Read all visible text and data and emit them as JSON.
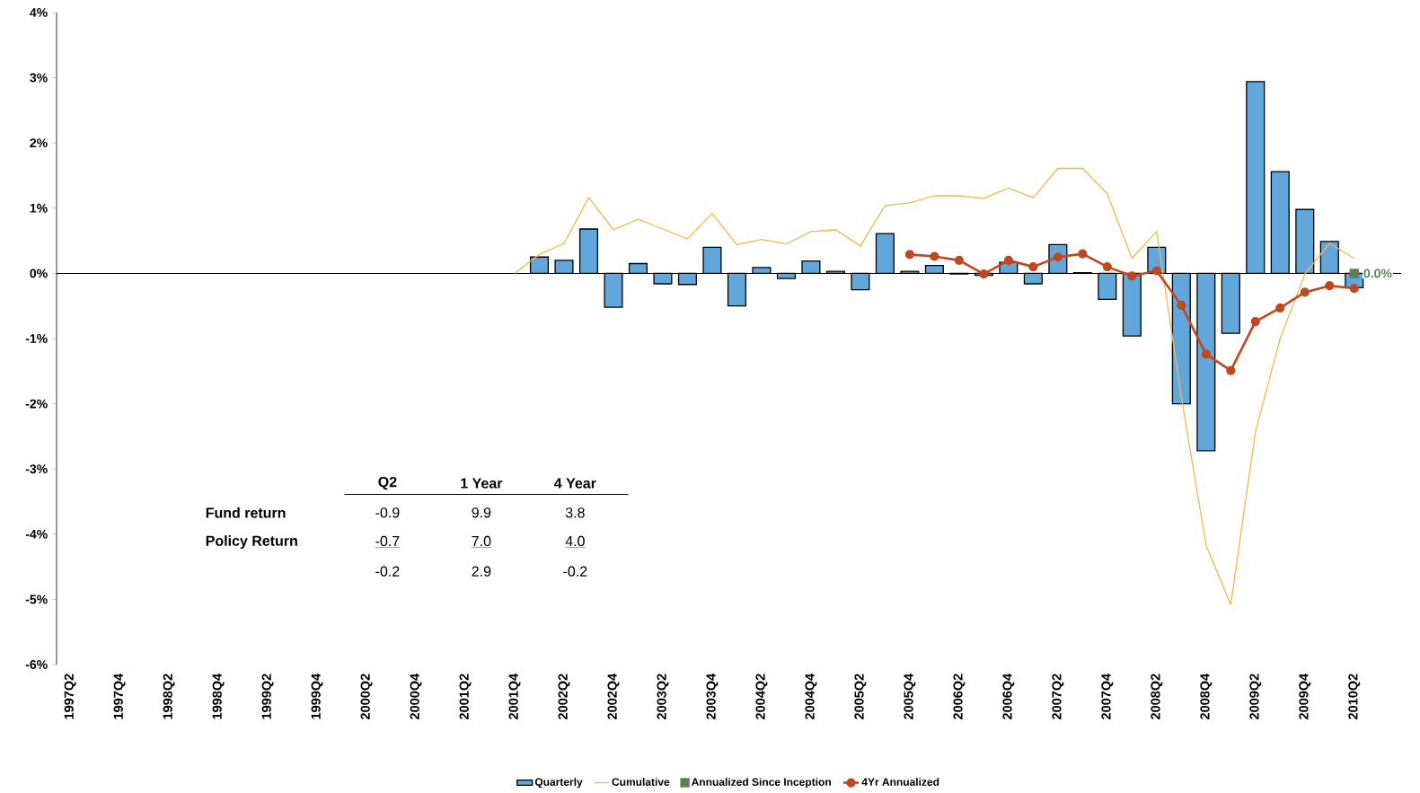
{
  "chart_data": {
    "type": "bar",
    "categories": [
      "1997Q2",
      null,
      "1997Q4",
      null,
      "1998Q2",
      null,
      "1998Q4",
      null,
      "1999Q2",
      null,
      "1999Q4",
      null,
      "2000Q2",
      null,
      "2000Q4",
      null,
      "2001Q2",
      null,
      "2001Q4",
      null,
      "2002Q2",
      null,
      "2002Q4",
      null,
      "2003Q2",
      null,
      "2003Q4",
      null,
      "2004Q2",
      null,
      "2004Q4",
      null,
      "2005Q2",
      null,
      "2005Q4",
      null,
      "2006Q2",
      null,
      "2006Q4",
      null,
      "2007Q2",
      null,
      "2007Q4",
      null,
      "2008Q2",
      null,
      "2008Q4",
      null,
      "2009Q2",
      null,
      "2009Q4",
      null,
      "2010Q2"
    ],
    "series": [
      {
        "name": "Quarterly",
        "color": "#62a7dc",
        "values": [
          null,
          null,
          null,
          null,
          null,
          null,
          null,
          null,
          null,
          null,
          null,
          null,
          null,
          null,
          null,
          null,
          null,
          null,
          null,
          0.25,
          0.2,
          0.68,
          -0.52,
          0.15,
          -0.16,
          -0.17,
          0.4,
          -0.5,
          0.09,
          -0.08,
          0.19,
          0.03,
          -0.25,
          0.61,
          0.03,
          0.12,
          -0.01,
          -0.03,
          0.17,
          -0.16,
          0.44,
          0.01,
          -0.4,
          -0.96,
          0.4,
          -2.0,
          -2.72,
          -0.92,
          2.94,
          1.56,
          0.98,
          0.49,
          -0.22
        ]
      },
      {
        "name": "Cumulative",
        "type": "line",
        "color": "#f2b84b",
        "marker": "none",
        "values": [
          null,
          null,
          null,
          null,
          null,
          null,
          null,
          null,
          null,
          null,
          null,
          null,
          null,
          null,
          null,
          null,
          null,
          null,
          0,
          0.29,
          0.46,
          1.16,
          0.67,
          0.83,
          0.68,
          0.53,
          0.92,
          0.44,
          0.52,
          0.45,
          0.64,
          0.67,
          0.42,
          1.04,
          1.08,
          1.19,
          1.19,
          1.15,
          1.31,
          1.16,
          1.61,
          1.61,
          1.22,
          0.23,
          0.64,
          -1.9,
          -4.17,
          -5.08,
          -2.43,
          -1.0,
          -0.01,
          0.46,
          0.23
        ]
      },
      {
        "name": "Annualized Since Inception",
        "type": "scatter",
        "color": "#5f7f56",
        "marker": "square",
        "values": [
          null,
          null,
          null,
          null,
          null,
          null,
          null,
          null,
          null,
          null,
          null,
          null,
          null,
          null,
          null,
          null,
          null,
          null,
          null,
          null,
          null,
          null,
          null,
          null,
          null,
          null,
          null,
          null,
          null,
          null,
          null,
          null,
          null,
          null,
          null,
          null,
          null,
          null,
          null,
          null,
          null,
          null,
          null,
          null,
          null,
          null,
          null,
          null,
          null,
          null,
          null,
          null,
          0.0
        ],
        "value_labels": [
          null,
          null,
          null,
          null,
          null,
          null,
          null,
          null,
          null,
          null,
          null,
          null,
          null,
          null,
          null,
          null,
          null,
          null,
          null,
          null,
          null,
          null,
          null,
          null,
          null,
          null,
          null,
          null,
          null,
          null,
          null,
          null,
          null,
          null,
          null,
          null,
          null,
          null,
          null,
          null,
          null,
          null,
          null,
          null,
          null,
          null,
          null,
          null,
          null,
          null,
          null,
          null,
          "0.0%"
        ]
      },
      {
        "name": "4Yr Annualized",
        "type": "line",
        "color": "#c0481f",
        "marker": "circle",
        "values": [
          null,
          null,
          null,
          null,
          null,
          null,
          null,
          null,
          null,
          null,
          null,
          null,
          null,
          null,
          null,
          null,
          null,
          null,
          null,
          null,
          null,
          null,
          null,
          null,
          null,
          null,
          null,
          null,
          null,
          null,
          null,
          null,
          null,
          null,
          0.29,
          0.26,
          0.2,
          -0.01,
          0.2,
          0.1,
          0.25,
          0.3,
          0.1,
          -0.04,
          0.04,
          -0.49,
          -1.24,
          -1.49,
          -0.74,
          -0.53,
          -0.29,
          -0.19,
          -0.23
        ]
      }
    ],
    "ylim": [
      -6,
      4
    ],
    "yticks": [
      {
        "value": -6,
        "label": "-6%"
      },
      {
        "value": -5,
        "label": "-5%"
      },
      {
        "value": -4,
        "label": "-4%"
      },
      {
        "value": -3,
        "label": "-3%"
      },
      {
        "value": -2,
        "label": "-2%"
      },
      {
        "value": -1,
        "label": "-1%"
      },
      {
        "value": 0,
        "label": "0%"
      },
      {
        "value": 1,
        "label": "1%"
      },
      {
        "value": 2,
        "label": "2%"
      },
      {
        "value": 3,
        "label": "3%"
      },
      {
        "value": 4,
        "label": "4%"
      }
    ],
    "legend": "bottom",
    "annotations": [
      "Q2",
      "1 Year",
      "4 Year",
      "Fund return",
      "-0.9",
      "9.9",
      "3.8",
      "Policy Return",
      "-0.7",
      "7.0",
      "4.0",
      "-0.2",
      "2.9",
      "-0.2"
    ]
  }
}
